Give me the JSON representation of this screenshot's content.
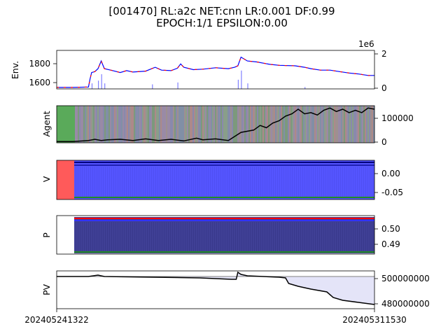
{
  "title_line1": "[001470] RL:a2c NET:cnn LR:0.001 DF:0.99",
  "title_line2": "EPOCH:1/1 EPSILON:0.00",
  "x_tick_labels": [
    "202405241322",
    "202405311530"
  ],
  "chart_data": [
    {
      "type": "line",
      "ylabel": "Env.",
      "y_ticks_left": [
        "1600",
        "1800"
      ],
      "y_ticks_right": [
        "0",
        "2"
      ],
      "right_axis_offset_text": "1e6",
      "price_ylim": [
        1550,
        1950
      ],
      "volume_ylim": [
        0,
        2.1
      ],
      "price_points": [
        [
          0,
          1565
        ],
        [
          0.05,
          1565
        ],
        [
          0.1,
          1570
        ],
        [
          0.105,
          1655
        ],
        [
          0.11,
          1720
        ],
        [
          0.12,
          1730
        ],
        [
          0.13,
          1760
        ],
        [
          0.14,
          1840
        ],
        [
          0.15,
          1760
        ],
        [
          0.17,
          1745
        ],
        [
          0.2,
          1720
        ],
        [
          0.22,
          1740
        ],
        [
          0.24,
          1725
        ],
        [
          0.28,
          1735
        ],
        [
          0.31,
          1775
        ],
        [
          0.33,
          1745
        ],
        [
          0.36,
          1740
        ],
        [
          0.38,
          1765
        ],
        [
          0.39,
          1810
        ],
        [
          0.4,
          1775
        ],
        [
          0.43,
          1750
        ],
        [
          0.46,
          1755
        ],
        [
          0.5,
          1770
        ],
        [
          0.54,
          1760
        ],
        [
          0.56,
          1775
        ],
        [
          0.57,
          1790
        ],
        [
          0.58,
          1880
        ],
        [
          0.6,
          1840
        ],
        [
          0.63,
          1830
        ],
        [
          0.67,
          1805
        ],
        [
          0.7,
          1795
        ],
        [
          0.75,
          1790
        ],
        [
          0.78,
          1775
        ],
        [
          0.8,
          1760
        ],
        [
          0.83,
          1745
        ],
        [
          0.86,
          1745
        ],
        [
          0.89,
          1730
        ],
        [
          0.92,
          1715
        ],
        [
          0.95,
          1705
        ],
        [
          0.98,
          1690
        ],
        [
          1.0,
          1690
        ]
      ],
      "volume_spikes": [
        [
          0.11,
          0.3
        ],
        [
          0.13,
          0.45
        ],
        [
          0.14,
          0.8
        ],
        [
          0.15,
          0.3
        ],
        [
          0.3,
          0.25
        ],
        [
          0.38,
          0.35
        ],
        [
          0.57,
          0.5
        ],
        [
          0.58,
          1.0
        ],
        [
          0.6,
          0.3
        ],
        [
          0.78,
          0.1
        ]
      ],
      "colors": {
        "price_up": "#0000ff",
        "price_down": "#ff0000",
        "volume": "#8080ff"
      }
    },
    {
      "type": "line",
      "ylabel": "Agent",
      "y_ticks_right": [
        "0",
        "100000"
      ],
      "ylim": [
        -5000,
        155000
      ],
      "green_band_end": 0.1,
      "series_points": [
        [
          0,
          0
        ],
        [
          0.05,
          0
        ],
        [
          0.1,
          5000
        ],
        [
          0.12,
          10000
        ],
        [
          0.14,
          5000
        ],
        [
          0.16,
          8000
        ],
        [
          0.2,
          10000
        ],
        [
          0.24,
          5000
        ],
        [
          0.28,
          12000
        ],
        [
          0.32,
          5000
        ],
        [
          0.36,
          10000
        ],
        [
          0.4,
          3000
        ],
        [
          0.44,
          15000
        ],
        [
          0.46,
          8000
        ],
        [
          0.5,
          12000
        ],
        [
          0.54,
          5000
        ],
        [
          0.58,
          40000
        ],
        [
          0.62,
          50000
        ],
        [
          0.64,
          70000
        ],
        [
          0.66,
          60000
        ],
        [
          0.68,
          80000
        ],
        [
          0.7,
          90000
        ],
        [
          0.72,
          110000
        ],
        [
          0.74,
          120000
        ],
        [
          0.76,
          140000
        ],
        [
          0.78,
          120000
        ],
        [
          0.8,
          125000
        ],
        [
          0.82,
          115000
        ],
        [
          0.84,
          135000
        ],
        [
          0.86,
          145000
        ],
        [
          0.88,
          130000
        ],
        [
          0.9,
          140000
        ],
        [
          0.92,
          125000
        ],
        [
          0.94,
          135000
        ],
        [
          0.96,
          125000
        ],
        [
          0.98,
          145000
        ],
        [
          1.0,
          140000
        ]
      ],
      "colors": {
        "line": "#000000",
        "band": "#5aaa5a"
      }
    },
    {
      "type": "area",
      "ylabel": "V",
      "y_ticks_right": [
        "0.00",
        "-0.05"
      ],
      "ylim": [
        -0.07,
        0.035
      ],
      "red_band_end": 0.095,
      "colors": {
        "blue": "#5555ff",
        "red": "#ff5a5a",
        "top_line": "#000080",
        "bottom_line": "#228B22"
      }
    },
    {
      "type": "area",
      "ylabel": "P",
      "y_ticks_right": [
        "0.50",
        "0.49"
      ],
      "ylim": [
        0.484,
        0.507
      ],
      "start": 0.095,
      "colors": {
        "fill": "#404096",
        "red_line": "#ff0000",
        "blue_line": "#3333ff",
        "green_line": "#228B22"
      }
    },
    {
      "type": "line",
      "ylabel": "PV",
      "y_ticks_right": [
        "500000000",
        "480000000"
      ],
      "ylim": [
        477000000,
        504000000
      ],
      "baseline": 500000000,
      "series_points": [
        [
          0,
          500000000
        ],
        [
          0.1,
          500000000
        ],
        [
          0.13,
          501000000
        ],
        [
          0.15,
          500000000
        ],
        [
          0.3,
          499500000
        ],
        [
          0.45,
          499000000
        ],
        [
          0.5,
          498500000
        ],
        [
          0.55,
          498000000
        ],
        [
          0.565,
          498000000
        ],
        [
          0.57,
          503000000
        ],
        [
          0.58,
          501500000
        ],
        [
          0.6,
          500500000
        ],
        [
          0.65,
          500000000
        ],
        [
          0.7,
          499500000
        ],
        [
          0.72,
          499000000
        ],
        [
          0.73,
          495000000
        ],
        [
          0.76,
          493000000
        ],
        [
          0.8,
          491000000
        ],
        [
          0.85,
          489000000
        ],
        [
          0.87,
          485000000
        ],
        [
          0.9,
          483000000
        ],
        [
          0.95,
          481500000
        ],
        [
          1.0,
          480000000
        ]
      ],
      "colors": {
        "line": "#000000",
        "fill": "#e4e4f8",
        "baseline": "#808080"
      }
    }
  ]
}
